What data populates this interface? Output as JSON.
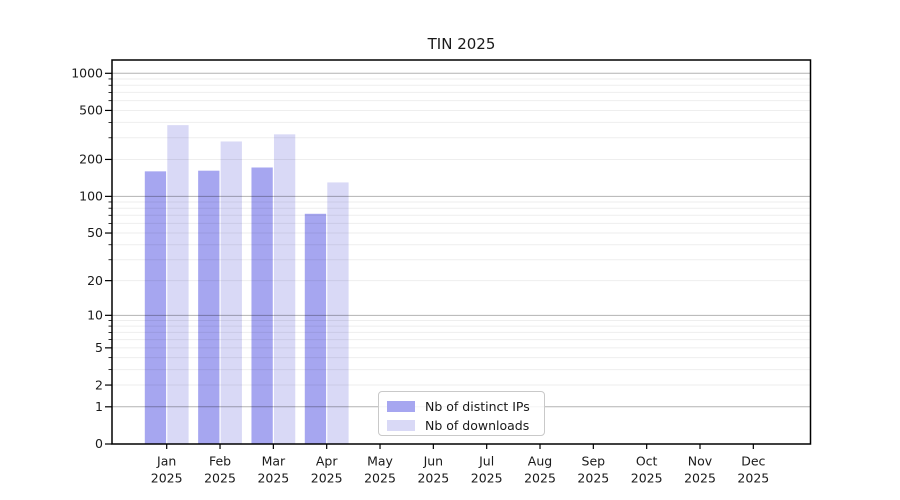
{
  "chart_data": {
    "type": "bar",
    "title": "TIN 2025",
    "categories": [
      "Jan",
      "Feb",
      "Mar",
      "Apr",
      "May",
      "Jun",
      "Jul",
      "Aug",
      "Sep",
      "Oct",
      "Nov",
      "Dec"
    ],
    "category_sublabel": "2025",
    "series": [
      {
        "name": "Nb of distinct IPs",
        "color": "#a6a6f0",
        "values": [
          160,
          162,
          172,
          72,
          null,
          null,
          null,
          null,
          null,
          null,
          null,
          null
        ]
      },
      {
        "name": "Nb of downloads",
        "color": "#d9d9f6",
        "values": [
          380,
          280,
          320,
          130,
          null,
          null,
          null,
          null,
          null,
          null,
          null,
          null
        ]
      }
    ],
    "yscale": "symlog-log1p",
    "yticks": [
      0,
      1,
      2,
      5,
      10,
      20,
      50,
      100,
      200,
      500,
      1000
    ],
    "ylim": [
      0,
      1285
    ],
    "xlabel": "",
    "ylabel": "",
    "grid": "horizontal major (1,10,100,1000) dark + minor light",
    "legend_position": "inside bottom-center-left",
    "colors": {
      "axis": "#000000",
      "tick_label": "#1a1a1a",
      "grid_major": "rgba(0,0,0,0.30)",
      "grid_minor": "rgba(0,0,0,0.065)"
    }
  }
}
